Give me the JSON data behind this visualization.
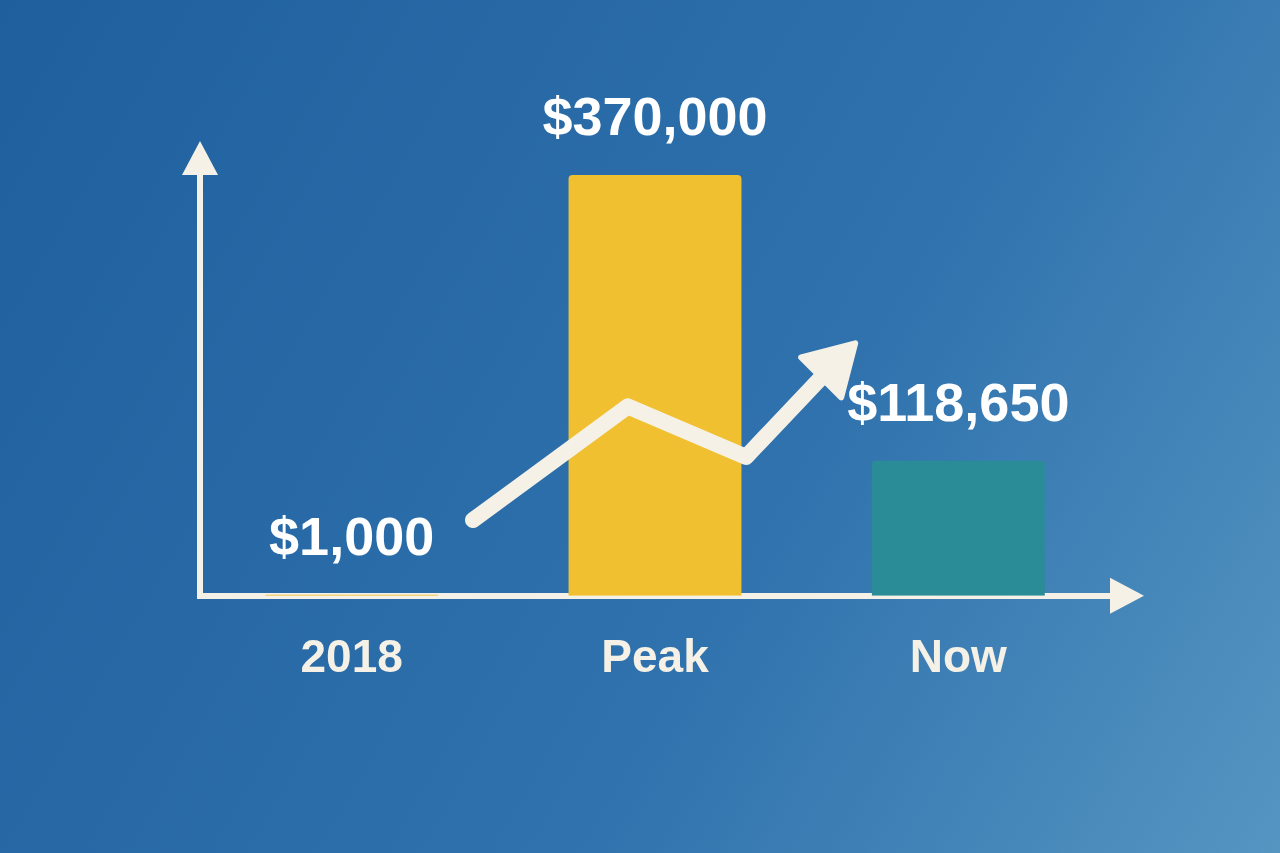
{
  "chart_data": {
    "type": "bar",
    "categories": [
      "2018",
      "Peak",
      "Now"
    ],
    "values": [
      1000,
      370000,
      118650
    ],
    "colors": [
      "#f0c030",
      "#f0c030",
      "#2a8c96"
    ],
    "value_labels": [
      "$1,000",
      "$370,000",
      "$118,650"
    ],
    "grid": false,
    "legend": false
  }
}
